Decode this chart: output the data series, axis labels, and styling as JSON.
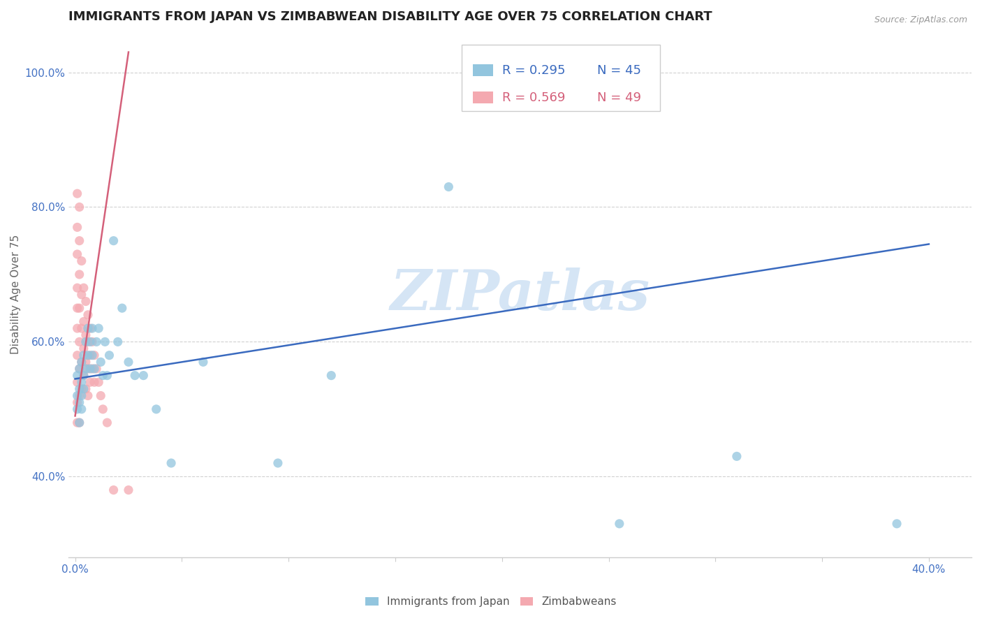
{
  "title": "IMMIGRANTS FROM JAPAN VS ZIMBABWEAN DISABILITY AGE OVER 75 CORRELATION CHART",
  "source_text": "Source: ZipAtlas.com",
  "ylabel": "Disability Age Over 75",
  "xlim": [
    -0.003,
    0.42
  ],
  "ylim": [
    0.28,
    1.06
  ],
  "xticks": [
    0.0,
    0.05,
    0.1,
    0.15,
    0.2,
    0.25,
    0.3,
    0.35,
    0.4
  ],
  "yticks": [
    0.4,
    0.6,
    0.8,
    1.0
  ],
  "xtick_labels": [
    "0.0%",
    "",
    "",
    "",
    "",
    "",
    "",
    "",
    "40.0%"
  ],
  "ytick_labels": [
    "40.0%",
    "60.0%",
    "80.0%",
    "100.0%"
  ],
  "legend_blue_r": "R = 0.295",
  "legend_blue_n": "N = 45",
  "legend_pink_r": "R = 0.569",
  "legend_pink_n": "N = 49",
  "blue_color": "#92c5de",
  "pink_color": "#f4a9b0",
  "blue_line_color": "#3a6abf",
  "pink_line_color": "#d4607a",
  "watermark": "ZIPatlas",
  "watermark_color": "#d5e5f5",
  "japan_x": [
    0.001,
    0.001,
    0.001,
    0.002,
    0.002,
    0.002,
    0.002,
    0.003,
    0.003,
    0.003,
    0.003,
    0.004,
    0.004,
    0.004,
    0.005,
    0.005,
    0.006,
    0.006,
    0.007,
    0.007,
    0.008,
    0.008,
    0.009,
    0.01,
    0.011,
    0.012,
    0.013,
    0.014,
    0.015,
    0.016,
    0.018,
    0.02,
    0.022,
    0.025,
    0.028,
    0.032,
    0.038,
    0.045,
    0.06,
    0.095,
    0.12,
    0.175,
    0.255,
    0.31,
    0.385
  ],
  "japan_y": [
    0.52,
    0.55,
    0.5,
    0.53,
    0.56,
    0.51,
    0.48,
    0.54,
    0.57,
    0.52,
    0.5,
    0.55,
    0.58,
    0.53,
    0.56,
    0.6,
    0.58,
    0.62,
    0.56,
    0.6,
    0.58,
    0.62,
    0.56,
    0.6,
    0.62,
    0.57,
    0.55,
    0.6,
    0.55,
    0.58,
    0.75,
    0.6,
    0.65,
    0.57,
    0.55,
    0.55,
    0.5,
    0.42,
    0.57,
    0.42,
    0.55,
    0.83,
    0.33,
    0.43,
    0.33
  ],
  "zimbabwe_x": [
    0.001,
    0.001,
    0.001,
    0.001,
    0.001,
    0.001,
    0.001,
    0.001,
    0.001,
    0.001,
    0.002,
    0.002,
    0.002,
    0.002,
    0.002,
    0.002,
    0.002,
    0.002,
    0.003,
    0.003,
    0.003,
    0.003,
    0.003,
    0.004,
    0.004,
    0.004,
    0.004,
    0.005,
    0.005,
    0.005,
    0.005,
    0.006,
    0.006,
    0.006,
    0.006,
    0.007,
    0.007,
    0.007,
    0.008,
    0.008,
    0.009,
    0.009,
    0.01,
    0.011,
    0.012,
    0.013,
    0.015,
    0.018,
    0.025
  ],
  "zimbabwe_y": [
    0.82,
    0.77,
    0.73,
    0.68,
    0.65,
    0.62,
    0.58,
    0.54,
    0.51,
    0.48,
    0.8,
    0.75,
    0.7,
    0.65,
    0.6,
    0.56,
    0.52,
    0.48,
    0.72,
    0.67,
    0.62,
    0.57,
    0.53,
    0.68,
    0.63,
    0.59,
    0.55,
    0.66,
    0.61,
    0.57,
    0.53,
    0.64,
    0.6,
    0.56,
    0.52,
    0.62,
    0.58,
    0.54,
    0.6,
    0.56,
    0.58,
    0.54,
    0.56,
    0.54,
    0.52,
    0.5,
    0.48,
    0.38,
    0.38
  ],
  "blue_trend_x": [
    0.0,
    0.4
  ],
  "blue_trend_y": [
    0.545,
    0.745
  ],
  "pink_trend_x": [
    0.0,
    0.025
  ],
  "pink_trend_y": [
    0.49,
    1.03
  ],
  "background_color": "#ffffff",
  "grid_color": "#cccccc",
  "title_fontsize": 13,
  "axis_label_fontsize": 11,
  "tick_fontsize": 11,
  "legend_fontsize": 13
}
